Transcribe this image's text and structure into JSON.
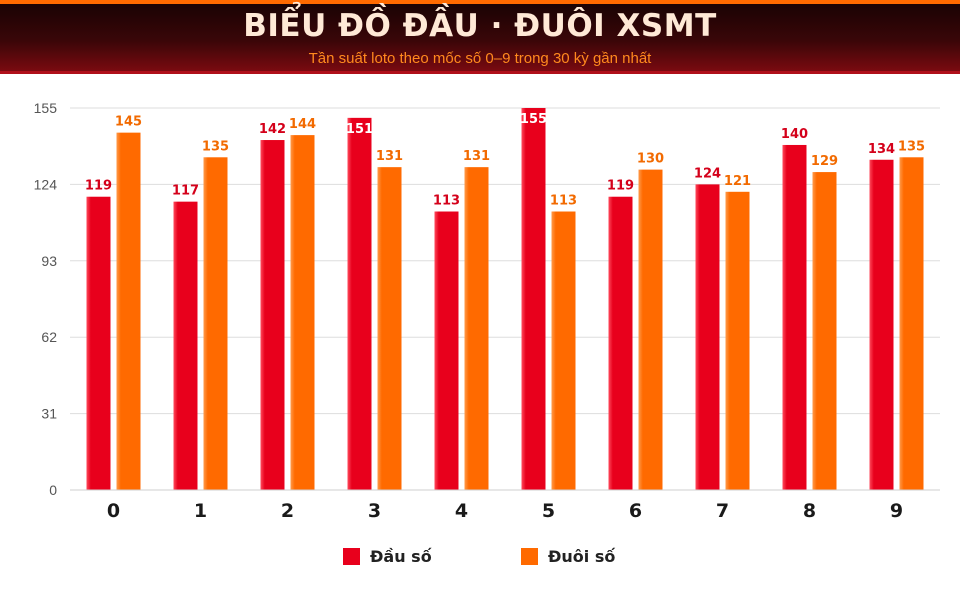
{
  "header": {
    "title": "BIỂU ĐỒ ĐẦU · ĐUÔI XSMT",
    "subtitle": "Tần suất loto theo mốc số 0–9 trong 30 kỳ gần nhất"
  },
  "legend": {
    "series_a": "Đầu số",
    "series_b": "Đuôi số"
  },
  "colors": {
    "dau": "#e8001c",
    "duoi": "#ff6a00",
    "dau_label": "#d4001a",
    "duoi_label": "#f26a00",
    "grid": "#dddddd"
  },
  "chart_data": {
    "type": "bar",
    "title": "BIỂU ĐỒ ĐẦU · ĐUÔI XSMT",
    "subtitle": "Tần suất loto theo mốc số 0–9 trong 30 kỳ gần nhất",
    "xlabel": "",
    "ylabel": "",
    "categories": [
      "0",
      "1",
      "2",
      "3",
      "4",
      "5",
      "6",
      "7",
      "8",
      "9"
    ],
    "series": [
      {
        "name": "Đầu số",
        "values": [
          119,
          117,
          142,
          151,
          113,
          155,
          119,
          124,
          140,
          134
        ]
      },
      {
        "name": "Đuôi số",
        "values": [
          145,
          135,
          144,
          131,
          131,
          113,
          130,
          121,
          129,
          135
        ]
      }
    ],
    "yticks": [
      "0",
      "31",
      "62",
      "93",
      "124",
      "155"
    ],
    "ylim": [
      0,
      155
    ],
    "grid": true,
    "legend_position": "bottom"
  }
}
